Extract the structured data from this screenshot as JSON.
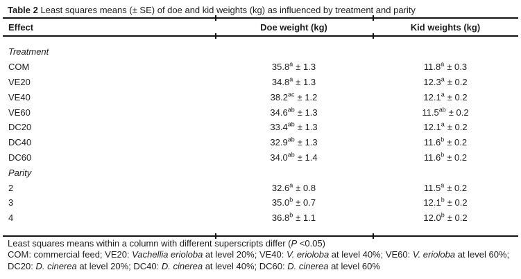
{
  "title": {
    "bold": "Table 2",
    "rest": " Least squares means (± SE) of doe and kid weights (kg) as influenced by treatment and parity"
  },
  "columns": {
    "effect": "Effect",
    "doe": "Doe weight (kg)",
    "kid": "Kid weights (kg)"
  },
  "table": {
    "rows": [
      {
        "label": "Treatment",
        "section": true
      },
      {
        "label": "COM",
        "doe": {
          "mean": "35.8",
          "sup": "a",
          "se": "± 1.3"
        },
        "kid": {
          "mean": "11.8",
          "sup": "a",
          "se": "± 0.3"
        }
      },
      {
        "label": "VE20",
        "doe": {
          "mean": "34.8",
          "sup": "a",
          "se": "± 1.3"
        },
        "kid": {
          "mean": "12.3",
          "sup": "a",
          "se": "± 0.2"
        }
      },
      {
        "label": "VE40",
        "doe": {
          "mean": "38.2",
          "sup": "ac",
          "se": "± 1.2"
        },
        "kid": {
          "mean": "12.1",
          "sup": "a",
          "se": "± 0.2"
        }
      },
      {
        "label": "VE60",
        "doe": {
          "mean": "34.6",
          "sup": "ab",
          "se": "± 1.3"
        },
        "kid": {
          "mean": "11.5",
          "sup": "ab",
          "se": "± 0.2"
        }
      },
      {
        "label": "DC20",
        "doe": {
          "mean": "33.4",
          "sup": "ab",
          "se": "± 1.3"
        },
        "kid": {
          "mean": "12.1",
          "sup": "a",
          "se": "± 0.2"
        }
      },
      {
        "label": "DC40",
        "doe": {
          "mean": "32.9",
          "sup": "ab",
          "se": "± 1.3"
        },
        "kid": {
          "mean": "11.6",
          "sup": "b",
          "se": "± 0.2"
        }
      },
      {
        "label": "DC60",
        "doe": {
          "mean": "34.0",
          "sup": "ab",
          "se": "± 1.4"
        },
        "kid": {
          "mean": "11.6",
          "sup": "b",
          "se": "± 0.2"
        }
      },
      {
        "label": "Parity",
        "section": true
      },
      {
        "label": "2",
        "doe": {
          "mean": "32.6",
          "sup": "a",
          "se": "± 0.8"
        },
        "kid": {
          "mean": "11.5",
          "sup": "a",
          "se": "± 0.2"
        }
      },
      {
        "label": "3",
        "doe": {
          "mean": "35.0",
          "sup": "b",
          "se": "± 0.7"
        },
        "kid": {
          "mean": "12.1",
          "sup": "b",
          "se": "± 0.2"
        }
      },
      {
        "label": "4",
        "doe": {
          "mean": "36.8",
          "sup": "b",
          "se": "± 1.1"
        },
        "kid": {
          "mean": "12.0",
          "sup": "b",
          "se": "± 0.2"
        }
      }
    ]
  },
  "footnotes": {
    "line1": {
      "pre": "Least squares means within a column with different superscripts differ (",
      "p": "P",
      "post": " <0.05)"
    },
    "line2": {
      "segments": [
        "COM: commercial feed; VE20: ",
        "Vachellia erioloba",
        " at level 20%; VE40: ",
        "V. erioloba",
        " at level 40%; VE60: ",
        "V. erioloba",
        " at level 60%; DC20: ",
        "D. cinerea",
        " at level 20%; DC40: ",
        "D. cinerea",
        " at level 40%; DC60: ",
        "D. cinerea",
        " at level 60%"
      ]
    }
  },
  "colors": {
    "text": "#1c1c1c",
    "rule": "#121212",
    "background": "#ffffff"
  }
}
